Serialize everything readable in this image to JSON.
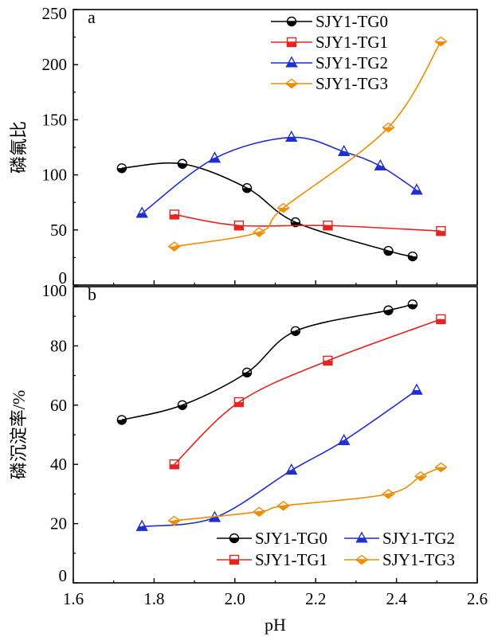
{
  "chart_data": [
    {
      "type": "line",
      "panel_label": "a",
      "ylabel": "磷氟比",
      "xlabel": "",
      "xlim": [
        1.6,
        2.6
      ],
      "ylim": [
        0,
        250
      ],
      "x_ticks": [
        "1.6",
        "1.8",
        "2.0",
        "2.2",
        "2.4",
        "2.6"
      ],
      "y_ticks": [
        "0",
        "50",
        "100",
        "150",
        "200",
        "250"
      ],
      "x_tick_values": [
        1.6,
        1.8,
        2.0,
        2.2,
        2.4,
        2.6
      ],
      "y_tick_values": [
        0,
        50,
        100,
        150,
        200,
        250
      ],
      "show_x_tick_labels": false,
      "legend_position": "top-center",
      "series": [
        {
          "name": "SJY1-TG0",
          "color": "#000000",
          "marker": "half-circle",
          "x": [
            1.72,
            1.87,
            2.03,
            2.15,
            2.38,
            2.44
          ],
          "y": [
            106,
            110,
            88,
            57,
            31,
            26
          ]
        },
        {
          "name": "SJY1-TG1",
          "color": "#e8231f",
          "marker": "half-square",
          "x": [
            1.85,
            2.01,
            2.23,
            2.51
          ],
          "y": [
            64,
            54,
            54,
            49
          ]
        },
        {
          "name": "SJY1-TG2",
          "color": "#1f2fd1",
          "marker": "half-triangle",
          "x": [
            1.77,
            1.95,
            2.14,
            2.27,
            2.36,
            2.45
          ],
          "y": [
            65,
            115,
            134,
            121,
            108,
            86
          ]
        },
        {
          "name": "SJY1-TG3",
          "color": "#f08c00",
          "marker": "half-diamond",
          "x": [
            1.85,
            2.06,
            2.12,
            2.38,
            2.51
          ],
          "y": [
            35,
            48,
            70,
            143,
            221
          ]
        }
      ]
    },
    {
      "type": "line",
      "panel_label": "b",
      "ylabel": "磷沉淀率/%",
      "xlabel": "pH",
      "xlim": [
        1.6,
        2.6
      ],
      "ylim": [
        0,
        100
      ],
      "x_ticks": [
        "1.6",
        "1.8",
        "2.0",
        "2.2",
        "2.4",
        "2.6"
      ],
      "y_ticks": [
        "0",
        "20",
        "40",
        "60",
        "80",
        "100"
      ],
      "x_tick_values": [
        1.6,
        1.8,
        2.0,
        2.2,
        2.4,
        2.6
      ],
      "y_tick_values": [
        0,
        20,
        40,
        60,
        80,
        100
      ],
      "show_x_tick_labels": true,
      "legend_position": "bottom-right",
      "series": [
        {
          "name": "SJY1-TG0",
          "color": "#000000",
          "marker": "half-circle",
          "x": [
            1.72,
            1.87,
            2.03,
            2.15,
            2.38,
            2.44
          ],
          "y": [
            55,
            60,
            71,
            85,
            92,
            94
          ]
        },
        {
          "name": "SJY1-TG1",
          "color": "#e8231f",
          "marker": "half-square",
          "x": [
            1.85,
            2.01,
            2.23,
            2.51
          ],
          "y": [
            40,
            61,
            75,
            89
          ]
        },
        {
          "name": "SJY1-TG2",
          "color": "#1f2fd1",
          "marker": "half-triangle",
          "x": [
            1.77,
            1.95,
            2.14,
            2.27,
            2.45
          ],
          "y": [
            19,
            22,
            38,
            48,
            65
          ]
        },
        {
          "name": "SJY1-TG3",
          "color": "#f08c00",
          "marker": "half-diamond",
          "x": [
            1.85,
            2.06,
            2.12,
            2.38,
            2.46,
            2.51
          ],
          "y": [
            21,
            24,
            26,
            30,
            36,
            39
          ]
        }
      ]
    }
  ]
}
